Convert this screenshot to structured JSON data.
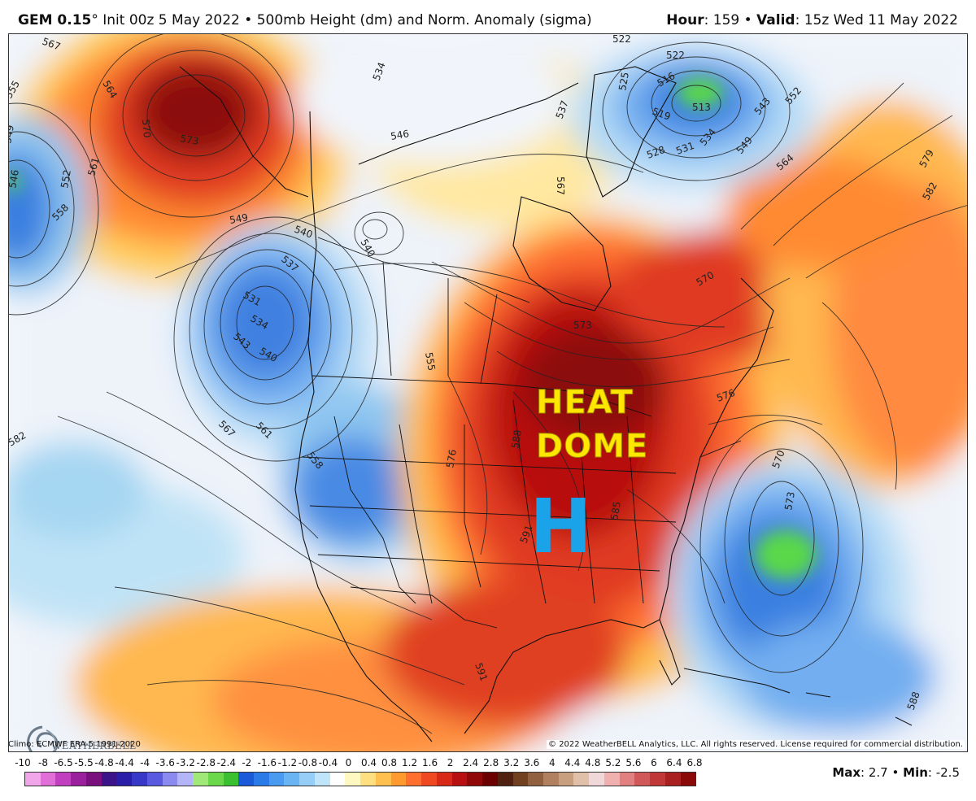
{
  "header": {
    "model": "GEM 0.15",
    "degree": "°",
    "init": "Init 00z 5 May 2022",
    "bullet": "•",
    "field": "500mb Height (dm) and Norm. Anomaly (sigma)",
    "hour_label": "Hour",
    "hour_value": ": 159",
    "valid_label": "Valid",
    "valid_value": ": 15z Wed 11 May 2022"
  },
  "map": {
    "heat_line1": "HEAT",
    "heat_line2": "DOME",
    "high_label": "H",
    "contour_labels": [
      "567",
      "564",
      "555",
      "549",
      "546",
      "552",
      "558",
      "561",
      "570",
      "573",
      "534",
      "546",
      "549",
      "540",
      "537",
      "531",
      "534",
      "543",
      "540",
      "567",
      "561",
      "558",
      "582",
      "522",
      "522",
      "525",
      "516",
      "513",
      "519",
      "528",
      "531",
      "534",
      "543",
      "552",
      "549",
      "564",
      "579",
      "582",
      "537",
      "576",
      "573",
      "570",
      "570",
      "573",
      "585",
      "588",
      "591",
      "591",
      "588",
      "576",
      "540",
      "555",
      "567"
    ]
  },
  "logo": {
    "brand": "WEATHERBELL"
  },
  "footer": {
    "climo": "Climo: ECMWF ERA-5 1991-2020",
    "copyright": "© 2022 WeatherBELL Analytics, LLC. All rights reserved. License required for commercial distribution.",
    "max_label": "Max",
    "max_value": ": 2.7",
    "min_label": "Min",
    "min_value": ": -2.5",
    "bullet": "•"
  },
  "scale": {
    "ticks": [
      "-10",
      "-8",
      "-6.5",
      "-5.5",
      "-4.8",
      "-4.4",
      "-4",
      "-3.6",
      "-3.2",
      "-2.8",
      "-2.4",
      "-2",
      "-1.6",
      "-1.2",
      "-0.8",
      "-0.4",
      "0",
      "0.4",
      "0.8",
      "1.2",
      "1.6",
      "2",
      "2.4",
      "2.8",
      "3.2",
      "3.6",
      "4",
      "4.4",
      "4.8",
      "5.2",
      "5.6",
      "6",
      "6.4",
      "6.8"
    ],
    "colors": [
      "#f0a6e8",
      "#e070d8",
      "#c040c0",
      "#9a209e",
      "#7a107e",
      "#3a1488",
      "#2a1ea8",
      "#3838c8",
      "#5a5ae0",
      "#8a8af0",
      "#b4b4f8",
      "#a0e878",
      "#6ad84a",
      "#3ac030",
      "#1a5ad8",
      "#2a7ae8",
      "#4a9af0",
      "#6ab4f4",
      "#96cef8",
      "#c0e4fa",
      "#ffffff",
      "#fff8c0",
      "#ffe080",
      "#ffc050",
      "#ff9a30",
      "#ff7030",
      "#f04820",
      "#d82818",
      "#b81010",
      "#900808",
      "#6a0000",
      "#502010",
      "#704020",
      "#906040",
      "#b08060",
      "#c8a080",
      "#e0c0a8",
      "#f0d8d8",
      "#f0b0b0",
      "#e08080",
      "#d05858",
      "#c03838",
      "#a82020",
      "#8a0a0a"
    ]
  }
}
